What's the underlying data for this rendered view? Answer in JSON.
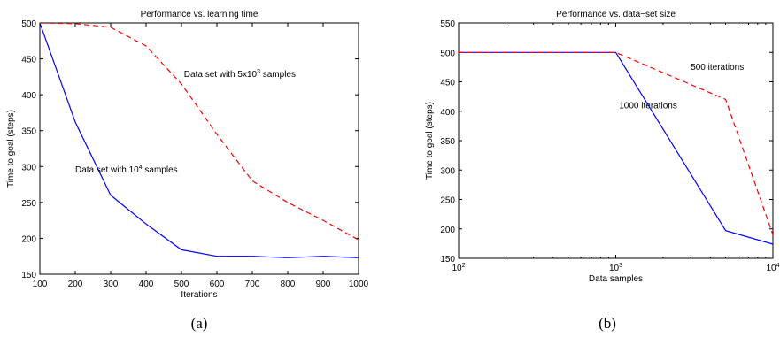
{
  "chart_data": [
    {
      "type": "line",
      "title": "Performance vs. learning time",
      "xlabel": "Iterations",
      "ylabel": "Time to goal (steps)",
      "xlim": [
        100,
        1000
      ],
      "ylim": [
        150,
        500
      ],
      "xticks": [
        100,
        200,
        300,
        400,
        500,
        600,
        700,
        800,
        900,
        1000
      ],
      "yticks": [
        150,
        200,
        250,
        300,
        350,
        400,
        450,
        500
      ],
      "grid": false,
      "caption": "(a)",
      "series": [
        {
          "color": "#0000ff",
          "dash": "solid",
          "x": [
            100,
            200,
            300,
            400,
            500,
            600,
            700,
            800,
            900,
            1000
          ],
          "y": [
            500,
            362,
            260,
            220,
            184,
            175,
            175,
            173,
            175,
            173
          ]
        },
        {
          "color": "#ff0000",
          "dash": "dashed",
          "x": [
            100,
            200,
            300,
            400,
            500,
            600,
            700,
            800,
            900,
            1000
          ],
          "y": [
            500,
            499,
            494,
            468,
            415,
            345,
            280,
            250,
            225,
            198
          ]
        }
      ],
      "annotations": [
        {
          "text_main": "Data set with 5x10",
          "text_sup": "3",
          "text_tail": " samples",
          "x": 507,
          "y": 425
        },
        {
          "text_main": "Data set with 10",
          "text_sup": "4",
          "text_tail": " samples",
          "x": 200,
          "y": 292
        }
      ]
    },
    {
      "type": "line",
      "title": "Performance vs. data−set size",
      "xlabel": "Data samples",
      "ylabel": "Time to goal (steps)",
      "xscale": "log",
      "xlim": [
        100,
        10000
      ],
      "ylim": [
        150,
        550
      ],
      "xticks": [
        {
          "value": 100,
          "base": "10",
          "exp": "2"
        },
        {
          "value": 1000,
          "base": "10",
          "exp": "3"
        },
        {
          "value": 10000,
          "base": "10",
          "exp": "4"
        }
      ],
      "yticks": [
        150,
        200,
        250,
        300,
        350,
        400,
        450,
        500,
        550
      ],
      "grid": false,
      "caption": "(b)",
      "series": [
        {
          "color": "#0000ff",
          "dash": "solid",
          "x": [
            100,
            1000,
            5000,
            10000
          ],
          "y": [
            500,
            500,
            197,
            174
          ]
        },
        {
          "color": "#ff0000",
          "dash": "dashed",
          "x": [
            100,
            1000,
            5000,
            10000
          ],
          "y": [
            500,
            500,
            420,
            190
          ]
        }
      ],
      "annotations": [
        {
          "text_main": "500 iterations",
          "text_sup": "",
          "text_tail": "",
          "x": 3000,
          "y": 470
        },
        {
          "text_main": "1000 iterations",
          "text_sup": "",
          "text_tail": "",
          "x": 1050,
          "y": 405
        }
      ]
    }
  ]
}
